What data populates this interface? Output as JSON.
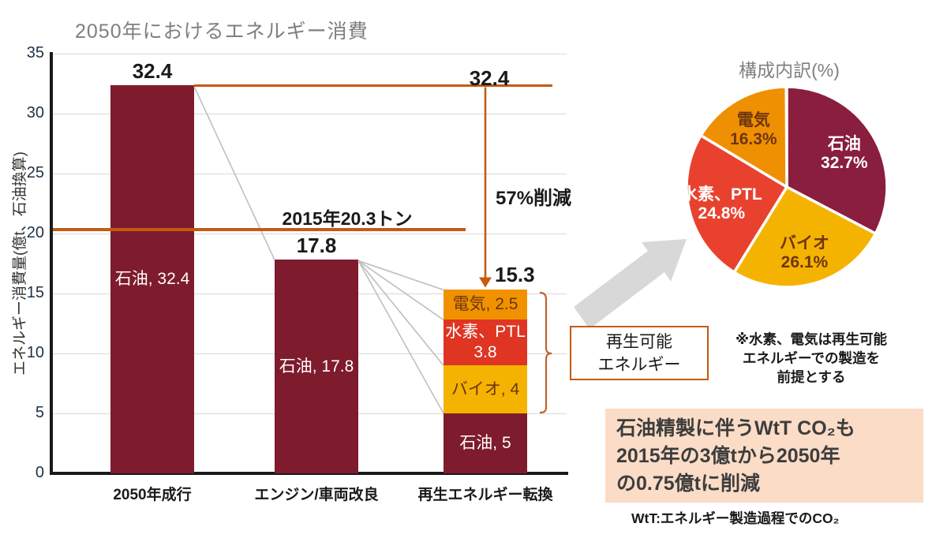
{
  "chart_data": [
    {
      "type": "stacked-bar",
      "title": "2050年におけるエネルギー消費",
      "ylabel": "エネルギー消費量(億t、石油換算)",
      "ylim": [
        0,
        35
      ],
      "ytick_step": 5,
      "grid": true,
      "categories": [
        "2050年成行",
        "エンジン/車両改良",
        "再生エネルギー転換"
      ],
      "bars": [
        {
          "total_label": "32.4",
          "segments": [
            {
              "name": "石油",
              "label": "石油, 32.4",
              "value": 32.4,
              "color": "#7E1B2D",
              "text_color": "#FFFFFF"
            }
          ]
        },
        {
          "total_label": "17.8",
          "segments": [
            {
              "name": "石油",
              "label": "石油, 17.8",
              "value": 17.8,
              "color": "#7E1B2D",
              "text_color": "#FFFFFF"
            }
          ]
        },
        {
          "total_label": "15.3",
          "segments": [
            {
              "name": "石油",
              "label": "石油, 5",
              "value": 5,
              "color": "#7E1B2D",
              "text_color": "#FFFFFF"
            },
            {
              "name": "バイオ",
              "label": "バイオ, 4",
              "value": 4,
              "color": "#F3B300",
              "text_color": "#6E3510"
            },
            {
              "name": "水素、PTL",
              "label": "水素、PTL\n3.8",
              "value": 3.8,
              "color": "#DF3522",
              "text_color": "#FFFFFF"
            },
            {
              "name": "電気",
              "label": "電気, 2.5",
              "value": 2.5,
              "color": "#F09200",
              "text_color": "#6E3510"
            }
          ]
        }
      ],
      "reference_line_2015": {
        "label": "2015年20.3トン",
        "value": 20.3,
        "color": "#C55A11"
      },
      "reference_line_top": {
        "label": "32.4",
        "value": 32.4,
        "color": "#C55A11"
      },
      "reduction_annotation": "57%削減",
      "final_total_annotation": "15.3"
    },
    {
      "type": "pie",
      "title": "構成内訳(%)",
      "clockwise_from_top": true,
      "slices": [
        {
          "label": "石油",
          "pct": 32.7,
          "pct_label": "32.7%",
          "color": "#8A1E3E",
          "text_color": "#FFFFFF"
        },
        {
          "label": "バイオ",
          "pct": 26.1,
          "pct_label": "26.1%",
          "color": "#F5B301",
          "text_color": "#6E3510"
        },
        {
          "label": "水素、PTL",
          "pct": 24.8,
          "pct_label": "24.8%",
          "color": "#E8422F",
          "text_color": "#FFFFFF"
        },
        {
          "label": "電気",
          "pct": 16.3,
          "pct_label": "16.3%",
          "color": "#EE9002",
          "text_color": "#6E3510"
        }
      ]
    }
  ],
  "renewable_box": {
    "text": "再生可能\nエネルギー"
  },
  "footnote": {
    "text": "※水素、電気は再生可能\nエネルギーでの製造を\n前提とする"
  },
  "co2_box": {
    "text": "石油精製に伴うWtT CO₂も\n2015年の3億tから2050年\nの0.75億tに削減"
  },
  "wtt_note": {
    "text": "WtT:エネルギー製造過程でのCO₂"
  },
  "colors": {
    "accent_orange": "#C55A11",
    "grid": "#D9D9D9",
    "connector": "#BFBFBF",
    "block_arrow": "#D8D8D8",
    "co2_box_bg": "#FBDCC7",
    "title_gray": "#7F7F7F"
  }
}
